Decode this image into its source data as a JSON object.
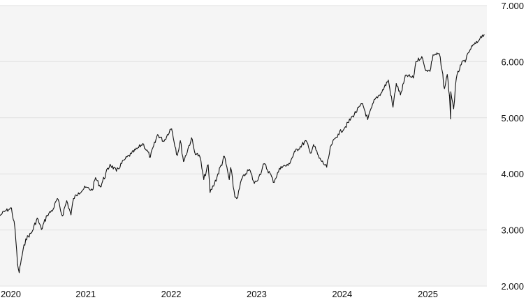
{
  "chart_data": {
    "type": "line",
    "title": "",
    "xlabel": "",
    "ylabel": "",
    "xlim": [
      "2020-01-01",
      "2025-09-10"
    ],
    "ylim": [
      2000,
      7000
    ],
    "y_ticks": [
      2000,
      3000,
      4000,
      5000,
      6000,
      7000
    ],
    "y_tick_labels": [
      "2.000",
      "3.000",
      "4.000",
      "5.000",
      "6.000",
      "7.000"
    ],
    "x_ticks": [
      "2020-01-01",
      "2021-01-01",
      "2022-01-01",
      "2023-01-01",
      "2024-01-01",
      "2025-01-01"
    ],
    "x_tick_labels": [
      "2020",
      "2021",
      "2022",
      "2023",
      "2024",
      "2025"
    ],
    "y_axis_position": "right",
    "grid": "horizontal",
    "legend": "none",
    "colors": {
      "plot_background": "#f5f5f5",
      "page_background": "#ffffff",
      "grid": "#e2e2e2",
      "line": "#111111",
      "text": "#111111"
    },
    "series": [
      {
        "x": [
          "2020-01-02",
          "2020-01-20",
          "2020-02-10",
          "2020-02-19",
          "2020-03-05",
          "2020-03-16",
          "2020-03-23",
          "2020-04-01",
          "2020-04-20",
          "2020-05-15",
          "2020-06-08",
          "2020-06-26",
          "2020-07-20",
          "2020-08-15",
          "2020-09-02",
          "2020-09-23",
          "2020-10-12",
          "2020-10-30",
          "2020-11-10",
          "2020-12-01",
          "2020-12-31",
          "2021-01-29",
          "2021-02-12",
          "2021-03-04",
          "2021-04-15",
          "2021-05-12",
          "2021-06-15",
          "2021-07-15",
          "2021-08-15",
          "2021-09-02",
          "2021-10-04",
          "2021-11-04",
          "2021-12-01",
          "2021-12-27",
          "2022-01-03",
          "2022-01-27",
          "2022-02-09",
          "2022-02-23",
          "2022-03-29",
          "2022-04-11",
          "2022-05-04",
          "2022-05-20",
          "2022-06-08",
          "2022-06-16",
          "2022-07-05",
          "2022-08-16",
          "2022-09-06",
          "2022-09-12",
          "2022-09-30",
          "2022-10-12",
          "2022-10-28",
          "2022-11-15",
          "2022-12-01",
          "2022-12-22",
          "2023-01-10",
          "2023-02-02",
          "2023-03-06",
          "2023-03-13",
          "2023-04-15",
          "2023-05-15",
          "2023-06-15",
          "2023-07-31",
          "2023-08-18",
          "2023-09-01",
          "2023-09-25",
          "2023-10-27",
          "2023-11-15",
          "2023-12-15",
          "2024-01-15",
          "2024-02-15",
          "2024-03-28",
          "2024-04-19",
          "2024-05-20",
          "2024-06-15",
          "2024-07-16",
          "2024-08-05",
          "2024-08-19",
          "2024-09-06",
          "2024-09-30",
          "2024-10-31",
          "2024-11-11",
          "2024-12-06",
          "2024-12-20",
          "2025-01-10",
          "2025-01-23",
          "2025-02-19",
          "2025-03-13",
          "2025-03-25",
          "2025-04-03",
          "2025-04-08",
          "2025-04-09",
          "2025-04-21",
          "2025-05-02",
          "2025-05-20",
          "2025-06-13",
          "2025-06-30",
          "2025-07-10",
          "2025-07-31",
          "2025-08-15",
          "2025-08-29"
        ],
        "y": [
          3260,
          3330,
          3370,
          3390,
          3020,
          2390,
          2240,
          2480,
          2840,
          2950,
          3210,
          3010,
          3260,
          3370,
          3560,
          3250,
          3520,
          3270,
          3560,
          3660,
          3760,
          3710,
          3930,
          3770,
          4170,
          4050,
          4250,
          4360,
          4470,
          4540,
          4300,
          4700,
          4580,
          4790,
          4800,
          4330,
          4590,
          4220,
          4640,
          4390,
          4300,
          3900,
          4160,
          3670,
          3830,
          4310,
          3900,
          4110,
          3590,
          3580,
          3900,
          4000,
          4080,
          3830,
          3940,
          4180,
          3950,
          3850,
          4130,
          4150,
          4400,
          4590,
          4370,
          4520,
          4280,
          4120,
          4510,
          4710,
          4840,
          5030,
          5250,
          4970,
          5330,
          5440,
          5670,
          5190,
          5610,
          5410,
          5760,
          5710,
          6000,
          6090,
          5870,
          5830,
          6120,
          6140,
          5520,
          5770,
          5400,
          4980,
          5460,
          5160,
          5690,
          5940,
          6040,
          6210,
          6280,
          6340,
          6450,
          6480
        ]
      }
    ]
  }
}
